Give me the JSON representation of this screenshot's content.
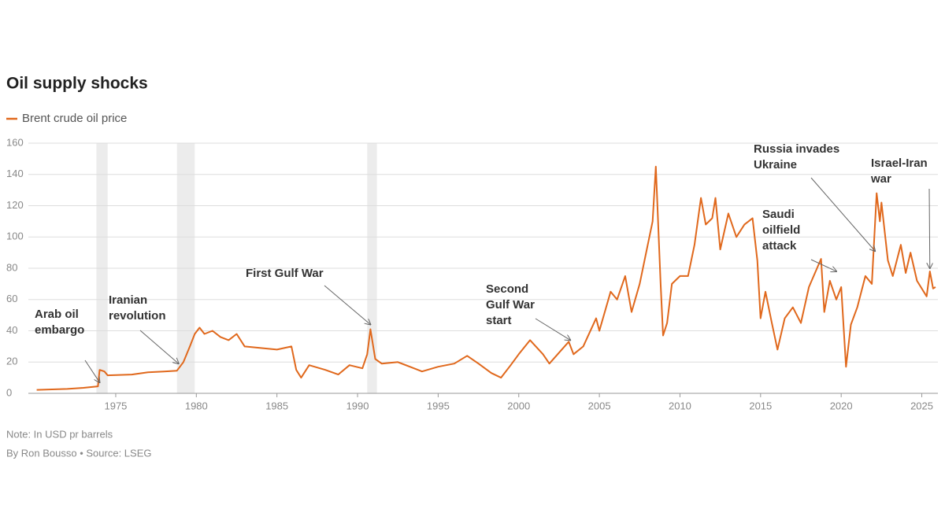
{
  "chart_data": {
    "type": "line",
    "title": "Oil supply shocks",
    "note": "Note: In USD pr barrels",
    "source": "By Ron Bousso • Source: LSEG",
    "xlim": [
      1970,
      2026
    ],
    "xticks": [
      1975,
      1980,
      1985,
      1990,
      1995,
      2000,
      2005,
      2010,
      2015,
      2020,
      2025
    ],
    "ylim": [
      0,
      160
    ],
    "yticks": [
      0,
      20,
      40,
      60,
      80,
      100,
      120,
      140,
      160
    ],
    "grid": true,
    "shaded_periods": [
      [
        1973.8,
        1974.5
      ],
      [
        1978.8,
        1979.9
      ],
      [
        1990.6,
        1991.2
      ]
    ],
    "x": [
      1970.1,
      1972,
      1973,
      1973.9,
      1974.0,
      1974.3,
      1974.5,
      1976,
      1977,
      1978,
      1978.8,
      1979.2,
      1979.6,
      1979.9,
      1980.2,
      1980.5,
      1981,
      1981.5,
      1982,
      1982.5,
      1983,
      1984,
      1985,
      1985.9,
      1986.2,
      1986.5,
      1987,
      1988,
      1988.8,
      1989.5,
      1990.3,
      1990.6,
      1990.8,
      1991.1,
      1991.5,
      1992.5,
      1993.5,
      1994,
      1995,
      1996,
      1996.8,
      1997.5,
      1998.3,
      1998.9,
      1999.5,
      2000,
      2000.7,
      2001.5,
      2001.9,
      2002.5,
      2003.1,
      2003.4,
      2004,
      2004.8,
      2005,
      2005.7,
      2006.1,
      2006.6,
      2007,
      2007.5,
      2007.9,
      2008.3,
      2008.5,
      2008.8,
      2008.95,
      2009.2,
      2009.5,
      2010,
      2010.5,
      2010.9,
      2011.3,
      2011.6,
      2012,
      2012.2,
      2012.5,
      2013,
      2013.5,
      2014,
      2014.5,
      2014.8,
      2015,
      2015.3,
      2015.7,
      2016.05,
      2016.5,
      2017,
      2017.5,
      2018,
      2018.75,
      2018.95,
      2019.3,
      2019.7,
      2020,
      2020.3,
      2020.6,
      2021,
      2021.5,
      2021.9,
      2022.2,
      2022.4,
      2022.5,
      2022.9,
      2023.2,
      2023.7,
      2024,
      2024.3,
      2024.7,
      2025.3,
      2025.5,
      2025.7,
      2025.85
    ],
    "series": [
      {
        "name": "Brent crude oil price",
        "color": "#e0681c",
        "values": [
          2.2,
          2.8,
          3.5,
          4.5,
          15,
          14,
          11.5,
          12,
          13.5,
          14,
          14.5,
          20,
          30,
          38,
          42,
          38,
          40,
          36,
          34,
          38,
          30,
          29,
          28,
          30,
          15,
          10,
          18,
          15,
          12,
          18,
          16,
          25,
          41,
          22,
          19,
          20,
          16,
          14,
          17,
          19,
          24,
          19,
          13,
          10,
          18,
          25,
          34,
          25,
          19,
          26,
          33,
          25,
          30,
          48,
          40,
          65,
          60,
          75,
          52,
          70,
          90,
          110,
          145,
          70,
          37,
          45,
          70,
          75,
          75,
          95,
          125,
          108,
          112,
          125,
          92,
          115,
          100,
          108,
          112,
          85,
          48,
          65,
          45,
          28,
          48,
          55,
          45,
          68,
          86,
          52,
          72,
          60,
          68,
          17,
          44,
          55,
          75,
          70,
          128,
          110,
          122,
          85,
          75,
          95,
          77,
          90,
          72,
          62,
          78,
          67,
          68
        ]
      }
    ],
    "annotations": [
      {
        "text": [
          "Arab oil",
          "embargo"
        ],
        "x": 1974.0,
        "y": 5
      },
      {
        "text": [
          "Iranian",
          "revolution"
        ],
        "x": 1978.9,
        "y": 17
      },
      {
        "text": [
          "First Gulf War"
        ],
        "x": 1990.8,
        "y": 42
      },
      {
        "text": [
          "Second",
          "Gulf War",
          "start"
        ],
        "x": 2003.2,
        "y": 32
      },
      {
        "text": [
          "Russia invades",
          "Ukraine"
        ],
        "x": 2022.1,
        "y": 89
      },
      {
        "text": [
          "Saudi",
          "oilfield",
          "attack"
        ],
        "x": 2019.7,
        "y": 76
      },
      {
        "text": [
          "Israel-Iran",
          "war"
        ],
        "x": 2025.5,
        "y": 78
      }
    ]
  }
}
